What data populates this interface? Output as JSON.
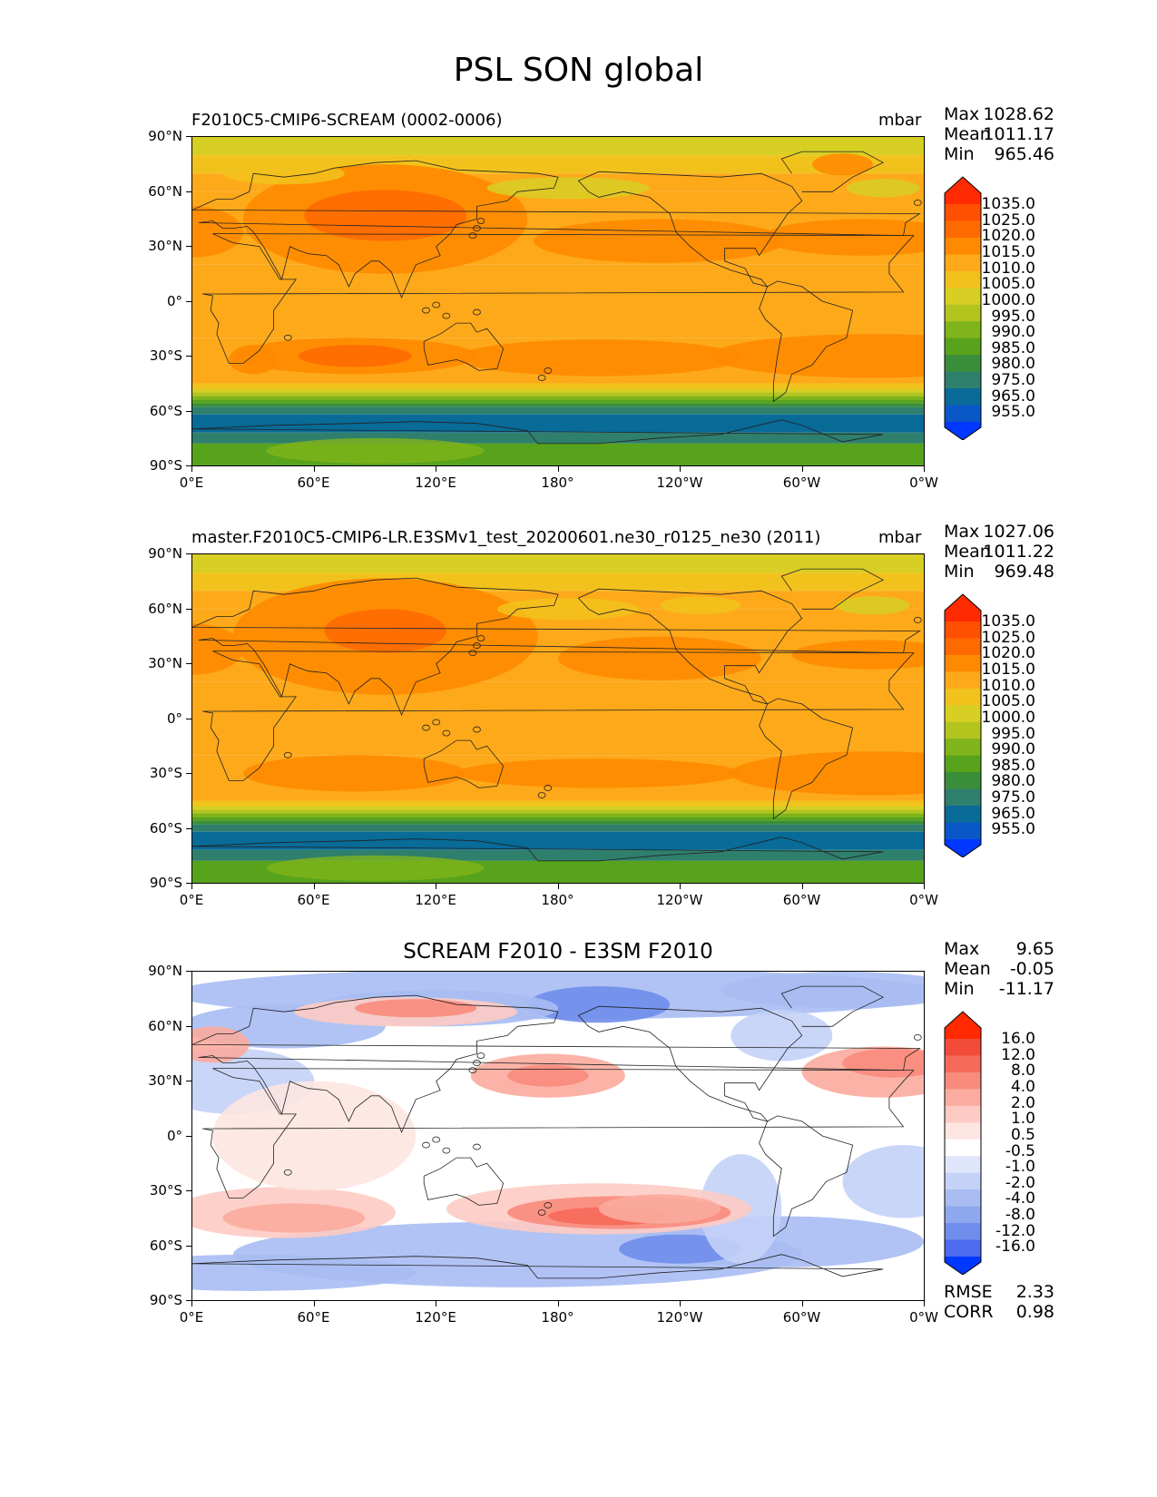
{
  "title": "PSL SON global",
  "panels": [
    {
      "id": "test",
      "title_left": "F2010C5-CMIP6-SCREAM (0002-0006)",
      "title_right": "mbar",
      "stats": [
        {
          "label": "Max",
          "value": "1028.62"
        },
        {
          "label": "Mean",
          "value": "1011.17"
        },
        {
          "label": "Min",
          "value": "965.46"
        }
      ],
      "colorbar_labels": [
        "1035.0",
        "1025.0",
        "1020.0",
        "1015.0",
        "1010.0",
        "1005.0",
        "1000.0",
        "995.0",
        "990.0",
        "985.0",
        "980.0",
        "975.0",
        "965.0",
        "955.0"
      ],
      "colorbar_colors": [
        "#ff2a00",
        "#ff4f00",
        "#ff6a00",
        "#ff8a00",
        "#fda91a",
        "#f2c21c",
        "#d8cf24",
        "#b4c41f",
        "#7fb41a",
        "#58a31c",
        "#3a8e3a",
        "#2f7f6d",
        "#086b98",
        "#0a57c8",
        "#0038ff"
      ]
    },
    {
      "id": "reference",
      "title_left": "master.F2010C5-CMIP6-LR.E3SMv1_test_20200601.ne30_r0125_ne30 (2011)",
      "title_right": "mbar",
      "stats": [
        {
          "label": "Max",
          "value": "1027.06"
        },
        {
          "label": "Mean",
          "value": "1011.22"
        },
        {
          "label": "Min",
          "value": "969.48"
        }
      ],
      "colorbar_labels": [
        "1035.0",
        "1025.0",
        "1020.0",
        "1015.0",
        "1010.0",
        "1005.0",
        "1000.0",
        "995.0",
        "990.0",
        "985.0",
        "980.0",
        "975.0",
        "965.0",
        "955.0"
      ],
      "colorbar_colors": [
        "#ff2a00",
        "#ff4f00",
        "#ff6a00",
        "#ff8a00",
        "#fda91a",
        "#f2c21c",
        "#d8cf24",
        "#b4c41f",
        "#7fb41a",
        "#58a31c",
        "#3a8e3a",
        "#2f7f6d",
        "#086b98",
        "#0a57c8",
        "#0038ff"
      ]
    },
    {
      "id": "diff",
      "title_center": "SCREAM F2010 - E3SM F2010",
      "stats": [
        {
          "label": "Max",
          "value": "9.65"
        },
        {
          "label": "Mean",
          "value": "-0.05"
        },
        {
          "label": "Min",
          "value": "-11.17"
        }
      ],
      "bottom_stats": [
        {
          "label": "RMSE",
          "value": "2.33"
        },
        {
          "label": "CORR",
          "value": "0.98"
        }
      ],
      "colorbar_labels": [
        "16.0",
        "12.0",
        "8.0",
        "4.0",
        "2.0",
        "1.0",
        "0.5",
        "-0.5",
        "-1.0",
        "-2.0",
        "-4.0",
        "-8.0",
        "-12.0",
        "-16.0"
      ],
      "colorbar_colors": [
        "#ff2a00",
        "#f24b3a",
        "#f66a5a",
        "#f98b7c",
        "#fbab9f",
        "#fdcbc3",
        "#fde5e1",
        "#ffffff",
        "#dfe6fb",
        "#c4d2f7",
        "#a9bdf3",
        "#8ea8ef",
        "#6f8deb",
        "#4d6bf0",
        "#0038ff"
      ]
    }
  ],
  "y_ticks": [
    "90°N",
    "60°N",
    "30°N",
    "0°",
    "30°S",
    "60°S",
    "90°S"
  ],
  "x_ticks": [
    "0°E",
    "60°E",
    "120°E",
    "180°",
    "120°W",
    "60°W",
    "0°W"
  ],
  "chart_data": [
    {
      "type": "heatmap",
      "title": "F2010C5-CMIP6-SCREAM (0002-0006)",
      "units": "mbar",
      "variable": "PSL",
      "season": "SON",
      "region": "global",
      "x_ticks": [
        "0°E",
        "60°E",
        "120°E",
        "180°",
        "120°W",
        "60°W",
        "0°W"
      ],
      "y_ticks": [
        "90°N",
        "60°N",
        "30°N",
        "0°",
        "30°S",
        "60°S",
        "90°S"
      ],
      "levels": [
        955,
        965,
        975,
        980,
        985,
        990,
        995,
        1000,
        1005,
        1010,
        1015,
        1020,
        1025,
        1035
      ],
      "max": 1028.62,
      "mean": 1011.17,
      "min": 965.46
    },
    {
      "type": "heatmap",
      "title": "master.F2010C5-CMIP6-LR.E3SMv1_test_20200601.ne30_r0125_ne30 (2011)",
      "units": "mbar",
      "x_ticks": [
        "0°E",
        "60°E",
        "120°E",
        "180°",
        "120°W",
        "60°W",
        "0°W"
      ],
      "y_ticks": [
        "90°N",
        "60°N",
        "30°N",
        "0°",
        "30°S",
        "60°S",
        "90°S"
      ],
      "levels": [
        955,
        965,
        975,
        980,
        985,
        990,
        995,
        1000,
        1005,
        1010,
        1015,
        1020,
        1025,
        1035
      ],
      "max": 1027.06,
      "mean": 1011.22,
      "min": 969.48
    },
    {
      "type": "heatmap",
      "title": "SCREAM F2010 - E3SM F2010",
      "x_ticks": [
        "0°E",
        "60°E",
        "120°E",
        "180°",
        "120°W",
        "60°W",
        "0°W"
      ],
      "y_ticks": [
        "90°N",
        "60°N",
        "30°N",
        "0°",
        "30°S",
        "60°S",
        "90°S"
      ],
      "levels": [
        -16,
        -12,
        -8,
        -4,
        -2,
        -1,
        -0.5,
        0.5,
        1,
        2,
        4,
        8,
        12,
        16
      ],
      "max": 9.65,
      "mean": -0.05,
      "min": -11.17,
      "rmse": 2.33,
      "corr": 0.98
    }
  ]
}
